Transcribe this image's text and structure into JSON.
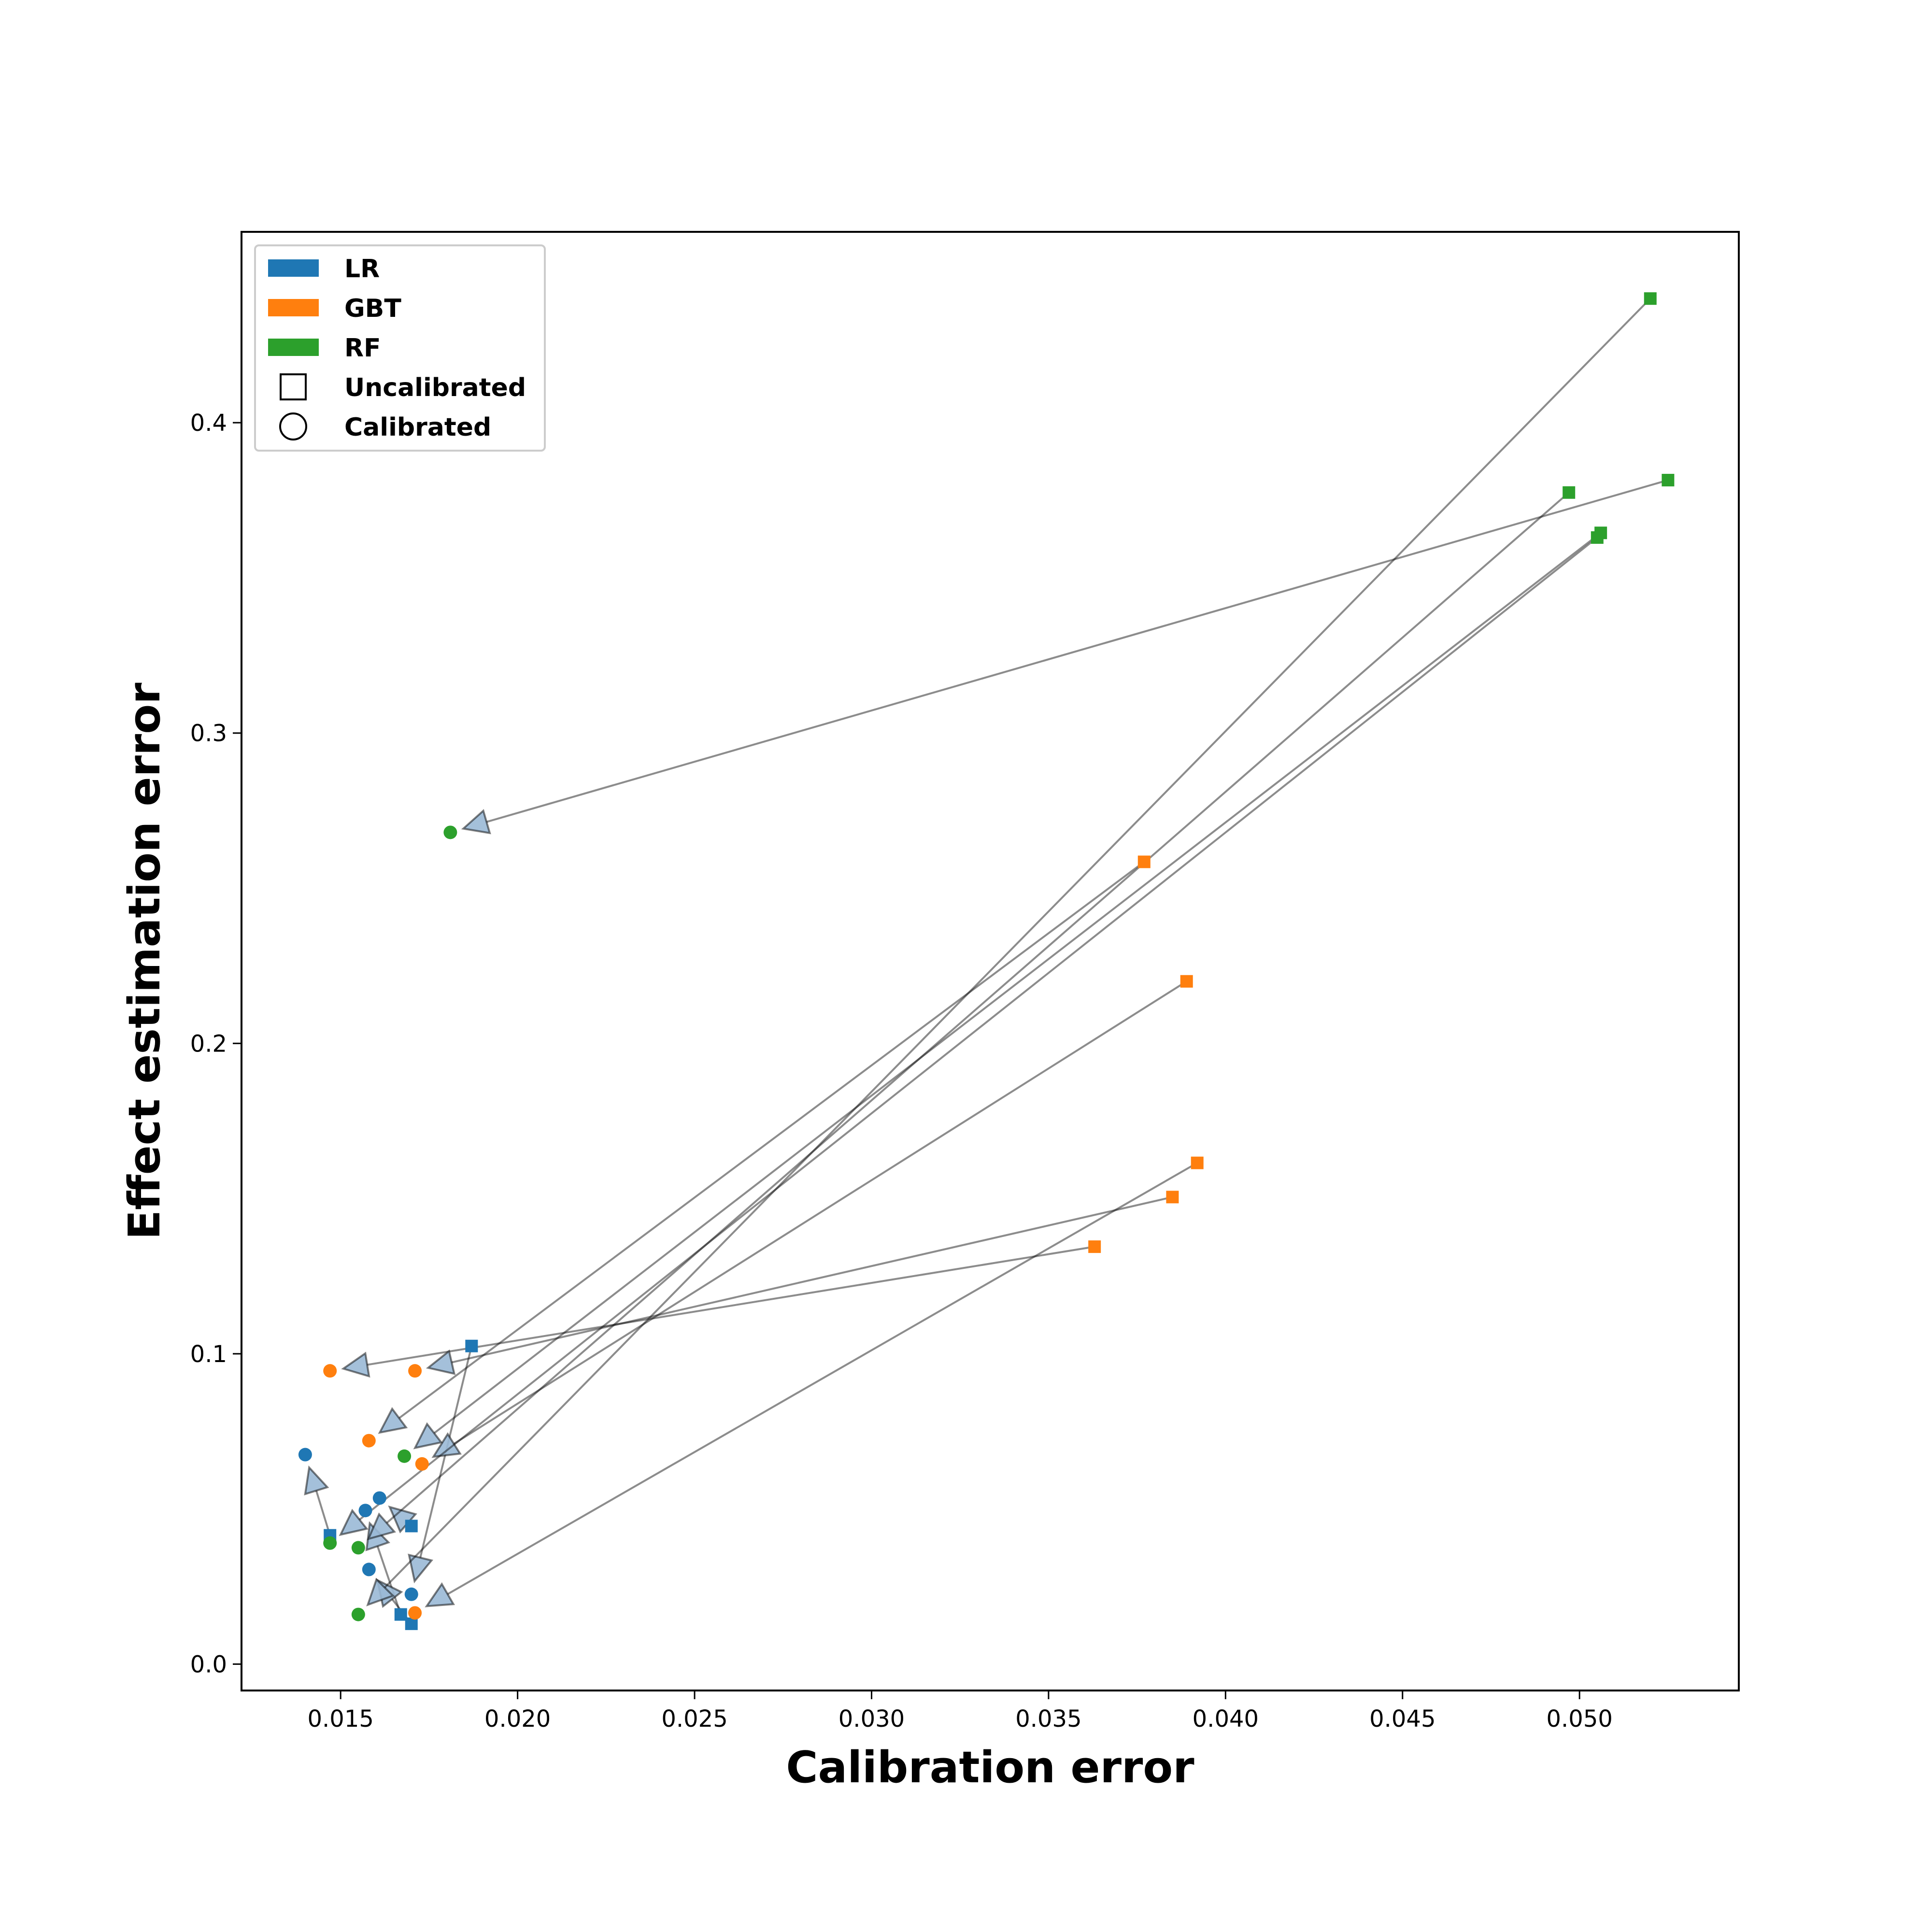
{
  "chart_data": {
    "type": "scatter",
    "xlabel": "Calibration error",
    "ylabel": "Effect estimation error",
    "xlim": [
      0.0122,
      0.0545
    ],
    "ylim": [
      -0.0085,
      0.4615
    ],
    "xticks": [
      0.015,
      0.02,
      0.025,
      0.03,
      0.035,
      0.04,
      0.045,
      0.05
    ],
    "xtick_labels": [
      "0.015",
      "0.020",
      "0.025",
      "0.030",
      "0.035",
      "0.040",
      "0.045",
      "0.050"
    ],
    "yticks": [
      0.0,
      0.1,
      0.2,
      0.3,
      0.4
    ],
    "ytick_labels": [
      "0.0",
      "0.1",
      "0.2",
      "0.3",
      "0.4"
    ],
    "grid": false,
    "legend": {
      "placement": "upper-left",
      "entries": [
        {
          "label": "LR",
          "kind": "color",
          "color": "#1f77b4"
        },
        {
          "label": "GBT",
          "kind": "color",
          "color": "#ff7f0e"
        },
        {
          "label": "RF",
          "kind": "color",
          "color": "#2ca02c"
        },
        {
          "label": "Uncalibrated",
          "kind": "marker",
          "marker": "square"
        },
        {
          "label": "Calibrated",
          "kind": "marker",
          "marker": "circle"
        }
      ]
    },
    "series": [
      {
        "name": "LR",
        "color": "#1f77b4",
        "pairs": [
          {
            "uncalibrated": [
              0.0147,
              0.0415
            ],
            "calibrated": [
              0.014,
              0.0675
            ]
          },
          {
            "uncalibrated": [
              0.0167,
              0.016
            ],
            "calibrated": [
              0.0157,
              0.0495
            ]
          },
          {
            "uncalibrated": [
              0.017,
              0.0445
            ],
            "calibrated": [
              0.0161,
              0.0535
            ]
          },
          {
            "uncalibrated": [
              0.017,
              0.013
            ],
            "calibrated": [
              0.0158,
              0.0305
            ]
          },
          {
            "uncalibrated": [
              0.0187,
              0.1025
            ],
            "calibrated": [
              0.017,
              0.0225
            ]
          }
        ]
      },
      {
        "name": "GBT",
        "color": "#ff7f0e",
        "pairs": [
          {
            "uncalibrated": [
              0.0363,
              0.1345
            ],
            "calibrated": [
              0.0147,
              0.0945
            ]
          },
          {
            "uncalibrated": [
              0.0377,
              0.2585
            ],
            "calibrated": [
              0.0158,
              0.072
            ]
          },
          {
            "uncalibrated": [
              0.0385,
              0.1505
            ],
            "calibrated": [
              0.0171,
              0.0945
            ]
          },
          {
            "uncalibrated": [
              0.0389,
              0.22
            ],
            "calibrated": [
              0.0173,
              0.0645
            ]
          },
          {
            "uncalibrated": [
              0.0392,
              0.1615
            ],
            "calibrated": [
              0.0171,
              0.0165
            ]
          }
        ]
      },
      {
        "name": "RF",
        "color": "#2ca02c",
        "pairs": [
          {
            "uncalibrated": [
              0.0497,
              0.3775
            ],
            "calibrated": [
              0.0155,
              0.0375
            ]
          },
          {
            "uncalibrated": [
              0.0505,
              0.363
            ],
            "calibrated": [
              0.0147,
              0.039
            ]
          },
          {
            "uncalibrated": [
              0.0506,
              0.3645
            ],
            "calibrated": [
              0.0168,
              0.067
            ]
          },
          {
            "uncalibrated": [
              0.052,
              0.44
            ],
            "calibrated": [
              0.0155,
              0.016
            ]
          },
          {
            "uncalibrated": [
              0.0525,
              0.3815
            ],
            "calibrated": [
              0.0181,
              0.268
            ]
          }
        ]
      }
    ]
  }
}
